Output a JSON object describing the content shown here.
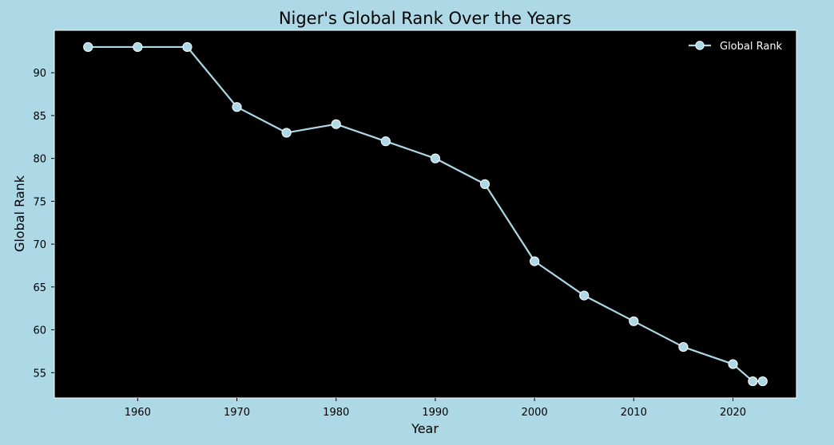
{
  "chart_data": {
    "type": "line",
    "title": "Niger's Global Rank Over the Years",
    "xlabel": "Year",
    "ylabel": "Global Rank",
    "xlim": [
      1951.6,
      2026.4
    ],
    "ylim": [
      52.05,
      94.95
    ],
    "x_ticks": [
      1960,
      1970,
      1980,
      1990,
      2000,
      2010,
      2020
    ],
    "y_ticks": [
      55,
      60,
      65,
      70,
      75,
      80,
      85,
      90
    ],
    "grid": false,
    "legend_position": "top-right",
    "series": [
      {
        "name": "Global Rank",
        "x": [
          1955,
          1960,
          1965,
          1970,
          1975,
          1980,
          1985,
          1990,
          1995,
          2000,
          2005,
          2010,
          2015,
          2020,
          2022,
          2023
        ],
        "y": [
          93,
          93,
          93,
          86,
          83,
          84,
          82,
          80,
          77,
          68,
          64,
          61,
          58,
          56,
          54,
          54
        ]
      }
    ]
  },
  "colors": {
    "figure_background": "#add8e6",
    "plot_background": "#000000",
    "line": "#add8e6",
    "marker_fill": "#add8e6",
    "marker_edge": "#ffffff",
    "text": "#000000",
    "legend_text": "#ffffff"
  }
}
